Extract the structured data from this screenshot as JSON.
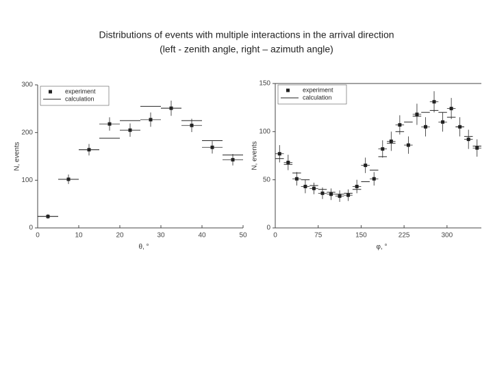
{
  "title": "Distributions of events with multiple interactions in the arrival direction",
  "subtitle": "(left - zenith angle, right – azimuth angle)",
  "chart_data": [
    {
      "type": "scatter",
      "x_label": "θ, °",
      "y_label": "N, events",
      "x": [
        2.5,
        7.5,
        12.5,
        17.5,
        22.5,
        27.5,
        32.5,
        37.5,
        42.5,
        47.5
      ],
      "series": [
        {
          "name": "experiment",
          "color": "#222222",
          "values": [
            24,
            102,
            164,
            218,
            205,
            227,
            251,
            215,
            169,
            143
          ],
          "yerr": [
            5,
            10,
            12,
            14,
            14,
            15,
            16,
            14,
            13,
            12
          ]
        },
        {
          "name": "calculation",
          "color": "#222222",
          "values": [
            24,
            102,
            164,
            188,
            225,
            255,
            251,
            225,
            183,
            153
          ]
        }
      ],
      "xlim": [
        0,
        50
      ],
      "xticks": [
        0,
        10,
        20,
        30,
        40,
        50
      ],
      "ylim": [
        0,
        300
      ],
      "yticks": [
        0,
        100,
        200,
        300
      ],
      "legend": "upper left"
    },
    {
      "type": "scatter",
      "x_label": "φ, °",
      "y_label": "N, events",
      "x": [
        7.5,
        22.5,
        37.5,
        52.5,
        67.5,
        82.5,
        97.5,
        112.5,
        127.5,
        142.5,
        157.5,
        172.5,
        187.5,
        202.5,
        217.5,
        232.5,
        247.5,
        262.5,
        277.5,
        292.5,
        307.5,
        322.5,
        337.5,
        352.5
      ],
      "series": [
        {
          "name": "experiment",
          "color": "#222222",
          "values": [
            77,
            68,
            51,
            43,
            41,
            36,
            35,
            33,
            34,
            43,
            65,
            51,
            82,
            90,
            107,
            86,
            118,
            105,
            131,
            110,
            124,
            105,
            92,
            83
          ],
          "yerr": [
            9,
            8,
            7,
            7,
            6,
            6,
            6,
            6,
            6,
            7,
            8,
            7,
            9,
            10,
            10,
            9,
            11,
            10,
            11,
            10,
            11,
            10,
            10,
            9
          ]
        },
        {
          "name": "calculation",
          "color": "#222222",
          "values": [
            72,
            66,
            57,
            50,
            44,
            40,
            37,
            35,
            36,
            40,
            48,
            60,
            74,
            88,
            100,
            110,
            116,
            120,
            122,
            120,
            115,
            105,
            95,
            85
          ]
        }
      ],
      "xlim": [
        0,
        360
      ],
      "xticks": [
        0,
        75,
        150,
        225,
        300
      ],
      "ylim": [
        0,
        150
      ],
      "yticks": [
        0,
        50,
        100,
        150
      ],
      "legend": "upper left"
    }
  ]
}
